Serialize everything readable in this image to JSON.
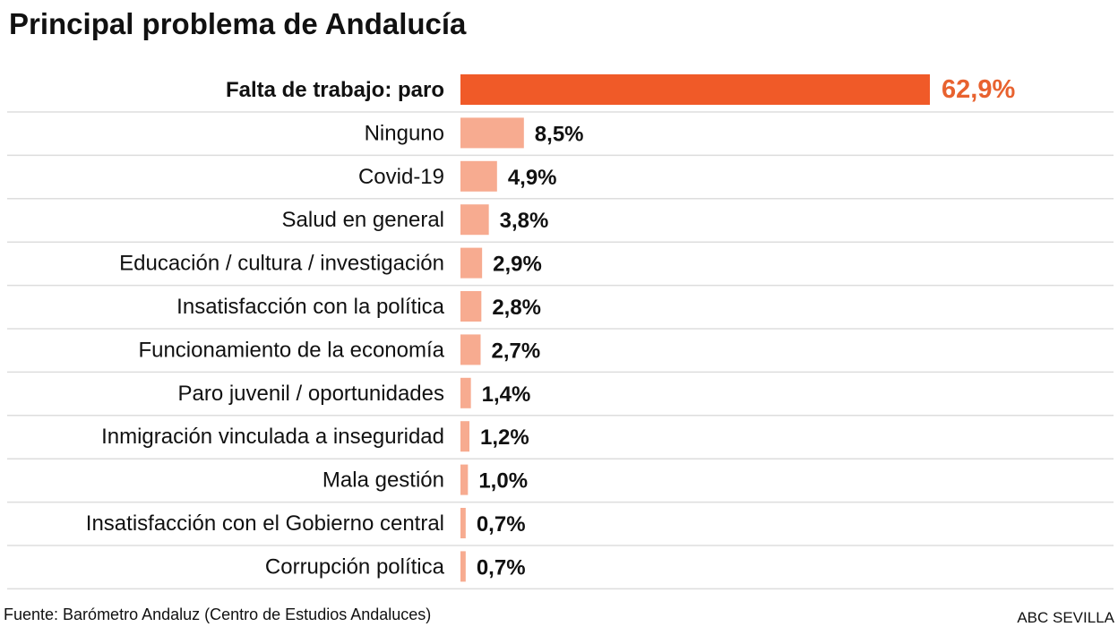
{
  "chart_data": {
    "type": "bar",
    "orientation": "horizontal",
    "title": "Principal problema de Andalucía",
    "categories": [
      "Falta de trabajo: paro",
      "Ninguno",
      "Covid-19",
      "Salud en general",
      "Educación / cultura / investigación",
      "Insatisfacción con la política",
      "Funcionamiento de la economía",
      "Paro juvenil / oportunidades",
      "Inmigración vinculada a inseguridad",
      "Mala gestión",
      "Insatisfacción con el Gobierno central",
      "Corrupción política"
    ],
    "values": [
      62.9,
      8.5,
      4.9,
      3.8,
      2.9,
      2.8,
      2.7,
      1.4,
      1.2,
      1.0,
      0.7,
      0.7
    ],
    "labels": [
      "62,9%",
      "8,5%",
      "4,9%",
      "3,8%",
      "2,9%",
      "2,8%",
      "2,7%",
      "1,4%",
      "1,2%",
      "1,0%",
      "0,7%",
      "0,7%"
    ],
    "unit": "%",
    "highlight_index": 0,
    "colors": {
      "highlight": "#f05a28",
      "default": "#f7ab90",
      "highlight_label": "#e8622f",
      "label": "#111111",
      "separator": "#dddddd"
    },
    "grid": false,
    "legend": "none",
    "source": "Fuente: Barómetro Andaluz (Centro de Estudios Andaluces)",
    "credit": "ABC SEVILLA"
  }
}
